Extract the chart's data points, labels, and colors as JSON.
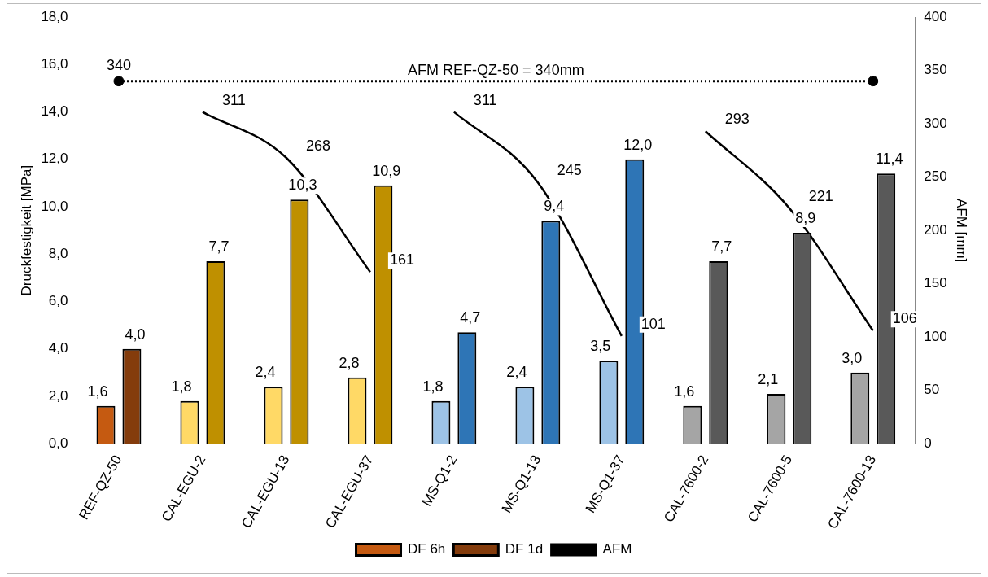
{
  "chart_data": {
    "type": "bar",
    "categories": [
      "REF-QZ-50",
      "CAL-EGU-2",
      "CAL-EGU-13",
      "CAL-EGU-37",
      "MS-Q1-2",
      "MS-Q1-13",
      "MS-Q1-37",
      "CAL-7600-2",
      "CAL-7600-5",
      "CAL-7600-13"
    ],
    "ylabel": "Druckfestigkeit [MPa]",
    "y2label": "AFM [mm]",
    "ylim": [
      0,
      18
    ],
    "yticks": [
      {
        "value": 0,
        "label": "0,0"
      },
      {
        "value": 2,
        "label": "2,0"
      },
      {
        "value": 4,
        "label": "4,0"
      },
      {
        "value": 6,
        "label": "6,0"
      },
      {
        "value": 8,
        "label": "8,0"
      },
      {
        "value": 10,
        "label": "10,0"
      },
      {
        "value": 12,
        "label": "12,0"
      },
      {
        "value": 14,
        "label": "14,0"
      },
      {
        "value": 16,
        "label": "16,0"
      },
      {
        "value": 18,
        "label": "18,0"
      }
    ],
    "y2lim": [
      0,
      400
    ],
    "y2ticks": [
      0,
      50,
      100,
      150,
      200,
      250,
      300,
      350,
      400
    ],
    "series": [
      {
        "name": "DF 6h",
        "colors": [
          "#c55a11",
          "#ffd966",
          "#ffd966",
          "#ffd966",
          "#9dc3e6",
          "#9dc3e6",
          "#9dc3e6",
          "#a5a5a5",
          "#a5a5a5",
          "#a5a5a5"
        ],
        "values": [
          1.6,
          1.8,
          2.4,
          2.8,
          1.8,
          2.4,
          3.5,
          1.6,
          2.1,
          3.0
        ],
        "value_labels": [
          "1,6",
          "1,8",
          "2,4",
          "2,8",
          "1,8",
          "2,4",
          "3,5",
          "1,6",
          "2,1",
          "3,0"
        ]
      },
      {
        "name": "DF 1d",
        "colors": [
          "#843c0c",
          "#bf9000",
          "#bf9000",
          "#bf9000",
          "#2e75b6",
          "#2e75b6",
          "#2e75b6",
          "#595959",
          "#595959",
          "#595959"
        ],
        "values": [
          4.0,
          7.7,
          10.3,
          10.9,
          4.7,
          9.4,
          12.0,
          7.7,
          8.9,
          11.4
        ],
        "value_labels": [
          "4,0",
          "7,7",
          "10,3",
          "10,9",
          "4,7",
          "9,4",
          "12,0",
          "7,7",
          "8,9",
          "11,4"
        ]
      },
      {
        "name": "AFM",
        "type": "line",
        "axis": "y2",
        "color": "#000000",
        "values": [
          null,
          311,
          268,
          161,
          null,
          null,
          null,
          null,
          null,
          null
        ],
        "value_labels": [
          null,
          "311",
          "268",
          "161",
          null,
          null,
          null,
          null,
          null,
          null
        ]
      },
      {
        "type": "line",
        "axis": "y2",
        "color": "#000000",
        "values": [
          null,
          null,
          null,
          null,
          311,
          245,
          101,
          null,
          null,
          null
        ],
        "value_labels": [
          null,
          null,
          null,
          null,
          "311",
          "245",
          "101",
          null,
          null,
          null
        ]
      },
      {
        "type": "line",
        "axis": "y2",
        "color": "#000000",
        "values": [
          null,
          null,
          null,
          null,
          null,
          null,
          null,
          293,
          221,
          106
        ],
        "value_labels": [
          null,
          null,
          null,
          null,
          null,
          null,
          null,
          "293",
          "221",
          "106"
        ]
      },
      {
        "type": "scatter",
        "axis": "y2",
        "color": "#000000",
        "marker": "circle",
        "x": [
          "REF-QZ-50",
          "CAL-7600-13"
        ],
        "values": [
          340,
          340
        ],
        "value_labels": [
          "340",
          null
        ]
      }
    ],
    "ref_lines": [
      {
        "axis": "y2",
        "value": 340,
        "label": "AFM REF-QZ-50 = 340mm",
        "line_style": "dotted",
        "color": "#000000"
      }
    ],
    "line_style": "solid",
    "legend": "bottom",
    "grid": false
  }
}
